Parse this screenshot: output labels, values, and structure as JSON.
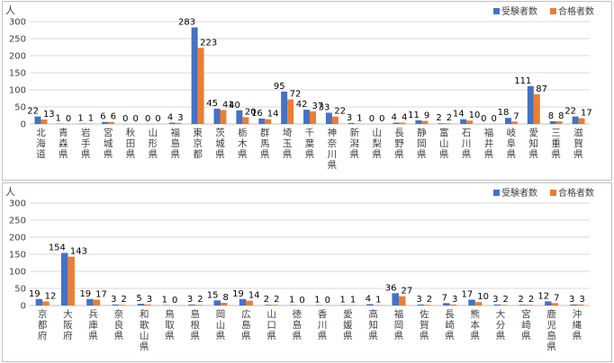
{
  "colors": {
    "applicants": "#4472C4",
    "passers": "#ED7D31",
    "grid": "#D9D9D9",
    "axis": "#BFBFBF"
  },
  "chart_data": [
    {
      "type": "bar",
      "unit_label": "人",
      "ylim": [
        0,
        300
      ],
      "yticks": [
        0,
        50,
        100,
        150,
        200,
        250,
        300
      ],
      "grid": true,
      "legend_position": "top-right",
      "categories": [
        "北海道",
        "青森県",
        "岩手県",
        "宮城県",
        "秋田県",
        "山形県",
        "福島県",
        "東京都",
        "茨城県",
        "栃木県",
        "群馬県",
        "埼玉県",
        "千葉県",
        "神奈川県",
        "新潟県",
        "山梨県",
        "長野県",
        "静岡県",
        "富山県",
        "石川県",
        "福井県",
        "岐阜県",
        "愛知県",
        "三重県",
        "滋賀県"
      ],
      "series": [
        {
          "name": "受験者数",
          "values": [
            22,
            1,
            1,
            6,
            0,
            0,
            4,
            283,
            45,
            40,
            16,
            95,
            42,
            33,
            3,
            0,
            4,
            11,
            2,
            14,
            0,
            18,
            111,
            8,
            22
          ]
        },
        {
          "name": "合格者数",
          "values": [
            13,
            0,
            1,
            6,
            0,
            0,
            3,
            223,
            41,
            20,
            14,
            72,
            37,
            22,
            1,
            0,
            4,
            9,
            2,
            10,
            0,
            7,
            87,
            8,
            17
          ]
        }
      ]
    },
    {
      "type": "bar",
      "unit_label": "人",
      "ylim": [
        0,
        300
      ],
      "yticks": [
        0,
        50,
        100,
        150,
        200,
        250,
        300
      ],
      "grid": true,
      "legend_position": "top-right",
      "categories": [
        "京都府",
        "大阪府",
        "兵庫県",
        "奈良県",
        "和歌山県",
        "鳥取県",
        "島根県",
        "岡山県",
        "広島県",
        "山口県",
        "徳島県",
        "香川県",
        "愛媛県",
        "高知県",
        "福岡県",
        "佐賀県",
        "長崎県",
        "熊本県",
        "大分県",
        "宮崎県",
        "鹿児島県",
        "沖縄県"
      ],
      "series": [
        {
          "name": "受験者数",
          "values": [
            19,
            154,
            19,
            3,
            5,
            1,
            3,
            15,
            19,
            2,
            1,
            1,
            1,
            4,
            36,
            3,
            7,
            17,
            3,
            2,
            12,
            3
          ]
        },
        {
          "name": "合格者数",
          "values": [
            12,
            143,
            17,
            2,
            3,
            0,
            2,
            8,
            14,
            2,
            0,
            0,
            1,
            1,
            27,
            2,
            3,
            10,
            2,
            2,
            7,
            3
          ]
        }
      ]
    }
  ]
}
